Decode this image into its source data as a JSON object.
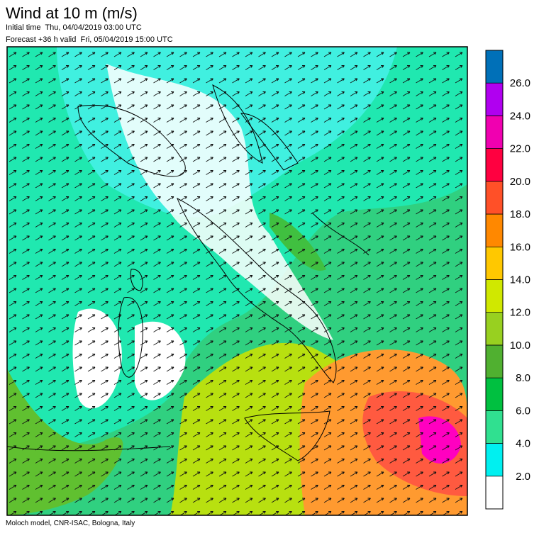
{
  "header": {
    "title": "Wind at 10 m (m/s)",
    "initial_time": "Initial time  Thu, 04/04/2019 03:00 UTC",
    "forecast": "Forecast +36 h valid  Fri, 05/04/2019 15:00 UTC"
  },
  "colorbar": {
    "colors": [
      "#ffffff",
      "#00f0f0",
      "#30e090",
      "#00c040",
      "#50b030",
      "#98d020",
      "#d0e800",
      "#ffc800",
      "#ff8800",
      "#ff5028",
      "#ff0040",
      "#f000b0",
      "#b000f0",
      "#4020d0"
    ],
    "top_color": "#0070b8",
    "ticks": [
      {
        "value": 2,
        "label": "2.0"
      },
      {
        "value": 4,
        "label": "4.0"
      },
      {
        "value": 6,
        "label": "6.0"
      },
      {
        "value": 8,
        "label": "8.0"
      },
      {
        "value": 10,
        "label": "10.0"
      },
      {
        "value": 12,
        "label": "12.0"
      },
      {
        "value": 14,
        "label": "14.0"
      },
      {
        "value": 16,
        "label": "16.0"
      },
      {
        "value": 18,
        "label": "18.0"
      },
      {
        "value": 20,
        "label": "20.0"
      },
      {
        "value": 22,
        "label": "22.0"
      },
      {
        "value": 24,
        "label": "24.0"
      },
      {
        "value": 26,
        "label": "26.0"
      }
    ]
  },
  "footer": "Moloch model, CNR-ISAC, Bologna, Italy"
}
